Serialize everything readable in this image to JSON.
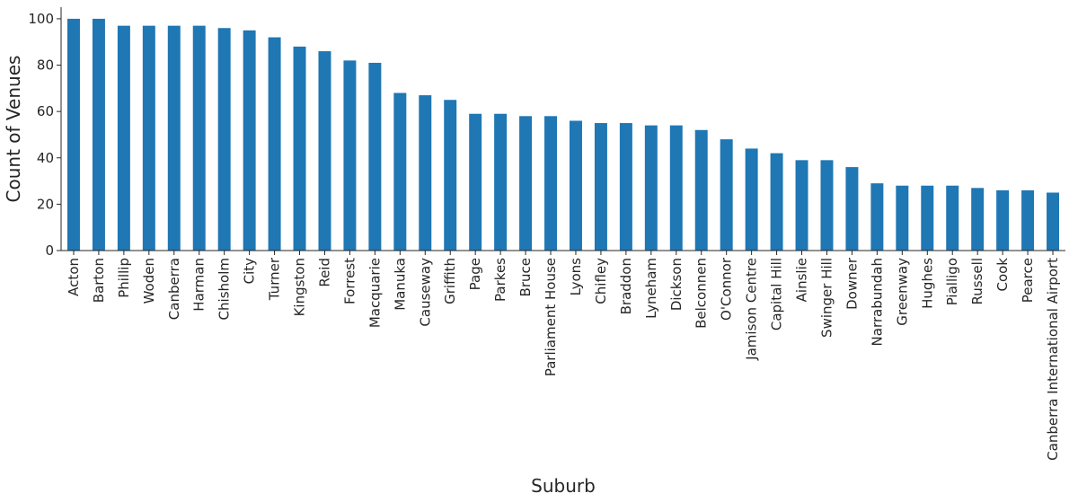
{
  "chart_data": {
    "type": "bar",
    "xlabel": "Suburb",
    "ylabel": "Count of Venues",
    "ylim": [
      0,
      105
    ],
    "yticks": [
      0,
      20,
      40,
      60,
      80,
      100
    ],
    "grid": false,
    "bar_color": "#1f77b4",
    "categories": [
      "Acton",
      "Barton",
      "Phillip",
      "Woden",
      "Canberra",
      "Harman",
      "Chisholm",
      "City",
      "Turner",
      "Kingston",
      "Reid",
      "Forrest",
      "Macquarie",
      "Manuka",
      "Causeway",
      "Griffith",
      "Page",
      "Parkes",
      "Bruce",
      "Parliament House",
      "Lyons",
      "Chifley",
      "Braddon",
      "Lyneham",
      "Dickson",
      "Belconnen",
      "O'Connor",
      "Jamison Centre",
      "Capital Hill",
      "Ainslie",
      "Swinger Hill",
      "Downer",
      "Narrabundah",
      "Greenway",
      "Hughes",
      "Pialligo",
      "Russell",
      "Cook",
      "Pearce",
      "Canberra International Airport"
    ],
    "values": [
      100,
      100,
      97,
      97,
      97,
      97,
      96,
      95,
      92,
      88,
      86,
      82,
      81,
      68,
      67,
      65,
      59,
      59,
      58,
      58,
      56,
      55,
      55,
      54,
      54,
      52,
      48,
      44,
      42,
      39,
      39,
      36,
      29,
      28,
      28,
      28,
      27,
      26,
      26,
      25
    ]
  }
}
